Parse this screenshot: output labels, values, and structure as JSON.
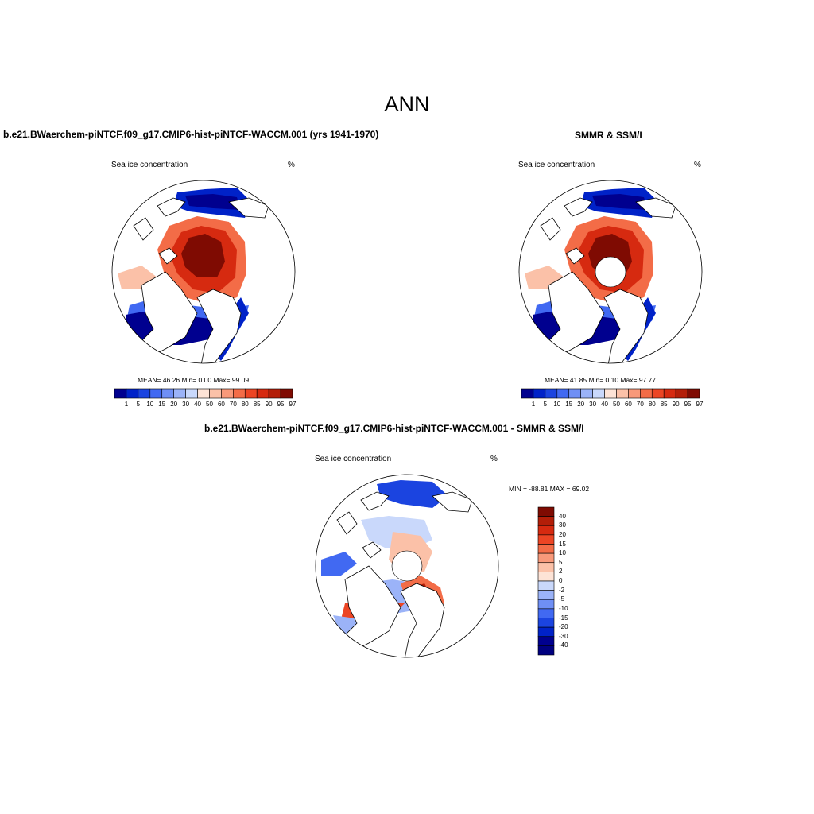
{
  "page": {
    "title": "ANN"
  },
  "colors": {
    "blues": [
      "#00008f",
      "#0022c8",
      "#1b44e0",
      "#4169f2",
      "#6f8ff5",
      "#9bb3f8",
      "#c9d8fb"
    ],
    "reds": [
      "#fde3d6",
      "#fbc1a8",
      "#f8997a",
      "#f36c47",
      "#ec4524",
      "#d62a10",
      "#b31e08",
      "#7f0b02"
    ],
    "land_fill": "#ffffff",
    "coast": "#000000"
  },
  "chart_data": [
    {
      "type": "polar-map",
      "id": "model",
      "title": "b.e21.BWaerchem-piNTCF.f09_g17.CMIP6-hist-piNTCF-WACCM.001 (yrs 1941-1970)",
      "variable": "Sea ice concentration",
      "units": "%",
      "stats": {
        "mean": 46.26,
        "min": 0.0,
        "max": 99.09
      },
      "stats_text": "MEAN=  46.26  Min=   0.00  Max=  99.09",
      "colorbar_levels": [
        "1",
        "5",
        "10",
        "15",
        "20",
        "30",
        "40",
        "50",
        "60",
        "70",
        "80",
        "85",
        "90",
        "95",
        "97"
      ],
      "legend": "bottom",
      "pole_hole": false
    },
    {
      "type": "polar-map",
      "id": "obs",
      "title": "SMMR & SSM/I",
      "variable": "Sea ice concentration",
      "units": "%",
      "stats": {
        "mean": 41.85,
        "min": 0.1,
        "max": 97.77
      },
      "stats_text": "MEAN=  41.85  Min=   0.10  Max=  97.77",
      "colorbar_levels": [
        "1",
        "5",
        "10",
        "15",
        "20",
        "30",
        "40",
        "50",
        "60",
        "70",
        "80",
        "85",
        "90",
        "95",
        "97"
      ],
      "legend": "bottom",
      "pole_hole": true
    },
    {
      "type": "polar-map",
      "id": "diff",
      "title": "b.e21.BWaerchem-piNTCF.f09_g17.CMIP6-hist-piNTCF-WACCM.001 - SMMR & SSM/I",
      "variable": "Sea ice concentration",
      "units": "%",
      "stats": {
        "min": -88.81,
        "max": 69.02
      },
      "stats_text": "MIN = -88.81 MAX =  69.02",
      "colorbar_levels": [
        "40",
        "30",
        "20",
        "15",
        "10",
        "5",
        "2",
        "0",
        "-2",
        "-5",
        "-10",
        "-15",
        "-20",
        "-30",
        "-40"
      ],
      "legend": "right",
      "pole_hole": true
    }
  ]
}
